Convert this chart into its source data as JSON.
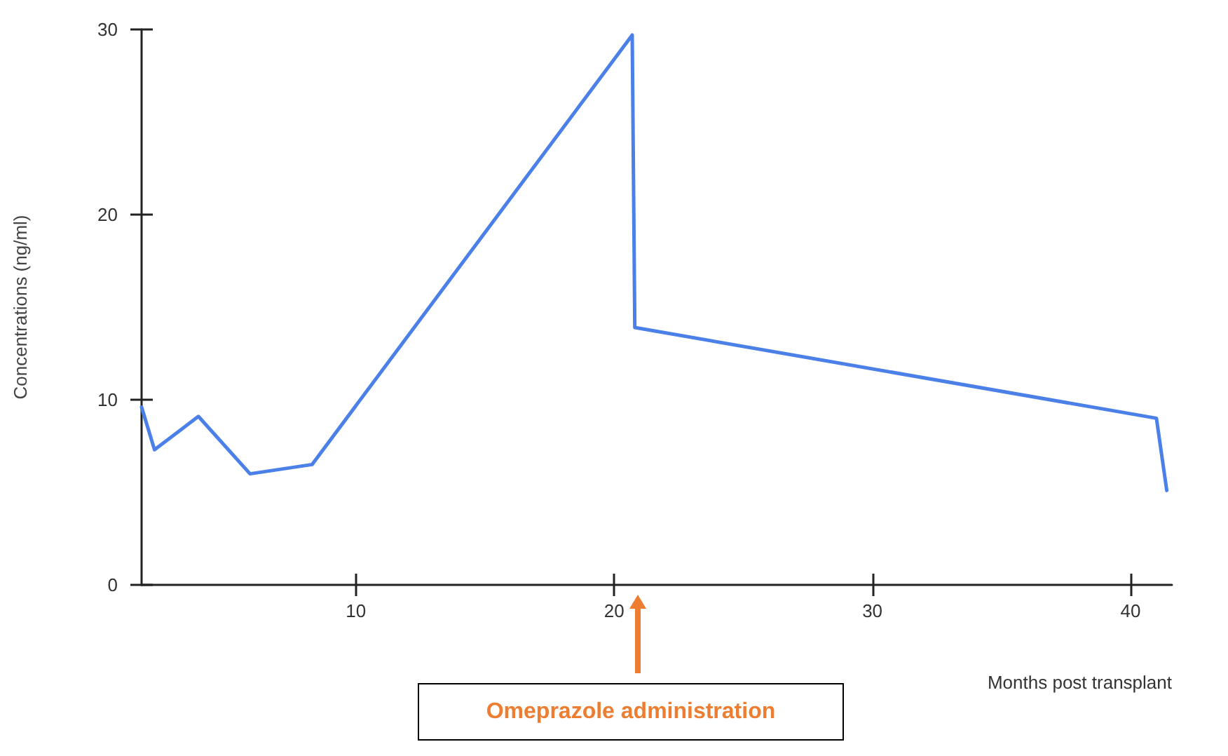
{
  "chart_data": {
    "type": "line",
    "ylabel": "Concentrations (ng/ml)",
    "xlabel": "Months post transplant",
    "x": [
      1.7,
      2.2,
      3.9,
      5.9,
      8.3,
      20.7,
      20.8,
      41.0,
      41.4
    ],
    "values": [
      9.6,
      7.3,
      9.1,
      6.0,
      6.5,
      29.7,
      13.9,
      9.0,
      5.1
    ],
    "color": "#4a80e8",
    "xlim": [
      1.7,
      41.6
    ],
    "xticks": [
      10,
      20,
      30,
      40
    ],
    "ylim": [
      0,
      30
    ],
    "yticks": [
      0,
      10,
      20,
      30
    ],
    "marker": "none",
    "line_style": "solid",
    "annotations": [
      "Omeprazole administration"
    ]
  }
}
